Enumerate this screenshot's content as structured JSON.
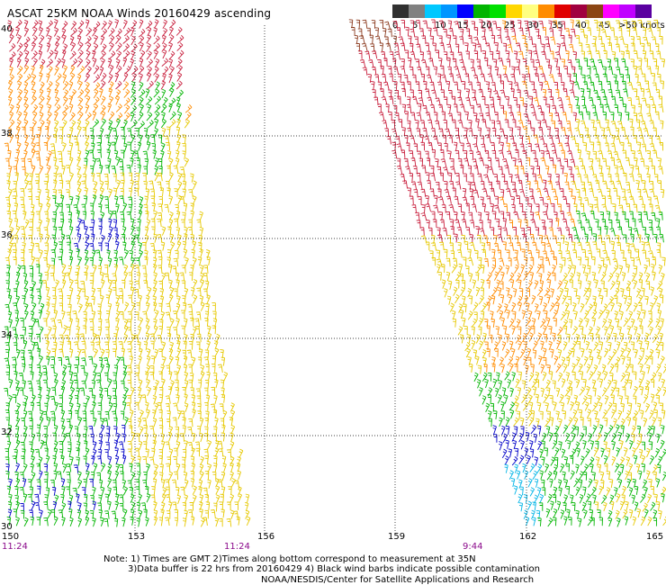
{
  "title": "ASCAT 25KM NOAA Winds 20160429 ascending",
  "legend": {
    "colors": [
      "#303030",
      "#808080",
      "#00c8ff",
      "#0096ff",
      "#0000ff",
      "#00b400",
      "#00e000",
      "#ffd700",
      "#ffff80",
      "#ff8c00",
      "#e00000",
      "#a00040",
      "#8b4513",
      "#ff00ff",
      "#c000ff",
      "#5a00a0"
    ],
    "labels": [
      "0",
      "5",
      "10",
      "15",
      "20",
      "25",
      "30",
      "35",
      "40",
      "45",
      ">50 knots"
    ]
  },
  "axes": {
    "lon_labels": [
      "150",
      "153",
      "156",
      "159",
      "162",
      "165"
    ],
    "lat_labels": [
      "40",
      "38",
      "36",
      "34",
      "32",
      "30"
    ],
    "times": [
      "11:24",
      "11:24",
      "9:44"
    ]
  },
  "notes": {
    "line1": "Note: 1) Times are GMT 2)Times along bottom correspond to measurement at 35N",
    "line2": "3)Data buffer is 22 hrs from 20160429 4) Black wind barbs indicate possible contamination",
    "credit": "NOAA/NESDIS/Center for Satellite Applications and Research"
  },
  "map_data": {
    "lon_range": [
      150,
      165
    ],
    "lat_range": [
      30,
      40
    ],
    "swaths": [
      {
        "name": "west",
        "time": "11:24"
      },
      {
        "name": "east",
        "time": "9:44"
      }
    ],
    "wind_colors": {
      "calm": "#0000c8",
      "light": "#00b400",
      "moderate": "#e6c800",
      "fresh": "#ffe060",
      "strong": "#ff8c00",
      "gale": "#c81e3c",
      "storm": "#8b3a1e"
    }
  }
}
